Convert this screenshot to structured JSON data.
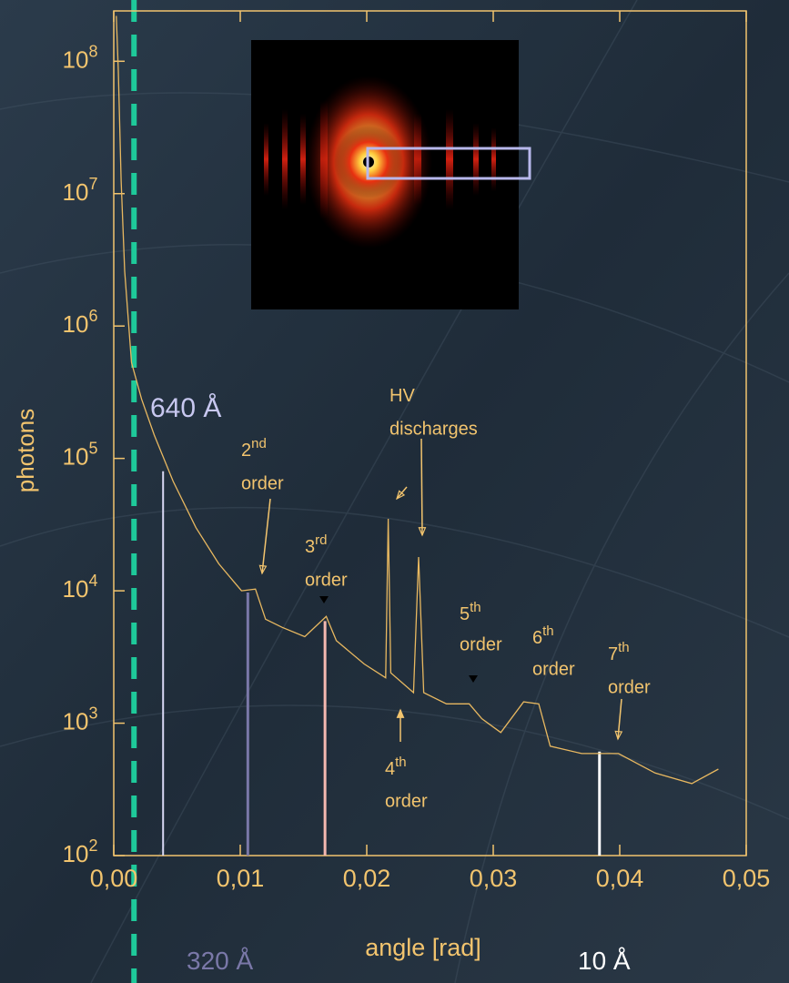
{
  "chart_data": {
    "type": "line",
    "xlabel": "angle [rad]",
    "ylabel": "photons",
    "log_y": true,
    "xlim": [
      0,
      0.05
    ],
    "ylim": [
      100,
      240000000
    ],
    "xticks": [
      {
        "value": 0,
        "label": "0,00"
      },
      {
        "value": 0.01,
        "label": "0,01"
      },
      {
        "value": 0.02,
        "label": "0,02"
      },
      {
        "value": 0.03,
        "label": "0,03"
      },
      {
        "value": 0.04,
        "label": "0,04"
      },
      {
        "value": 0.05,
        "label": "0,05"
      }
    ],
    "yticks": [
      {
        "value": 100,
        "label": "10",
        "sup": "2"
      },
      {
        "value": 1000,
        "label": "10",
        "sup": "3"
      },
      {
        "value": 10000,
        "label": "10",
        "sup": "4"
      },
      {
        "value": 100000,
        "label": "10",
        "sup": "5"
      },
      {
        "value": 1000000,
        "label": "10",
        "sup": "6"
      },
      {
        "value": 10000000,
        "label": "10",
        "sup": "7"
      },
      {
        "value": 100000000,
        "label": "10",
        "sup": "8"
      }
    ],
    "axis_color": "#f2c46e",
    "series": [
      {
        "color": "#e8b860",
        "x": [
          0.0002,
          0.00036,
          0.00058,
          0.00086,
          0.0014,
          0.0022,
          0.0032,
          0.0047,
          0.0065,
          0.0083,
          0.0101,
          0.0112,
          0.012,
          0.0133,
          0.0151,
          0.0168,
          0.0176,
          0.0198,
          0.0215,
          0.0217,
          0.0219,
          0.0237,
          0.0241,
          0.0245,
          0.0263,
          0.0281,
          0.0291,
          0.0306,
          0.0324,
          0.0336,
          0.0345,
          0.037,
          0.0399,
          0.0428,
          0.0457,
          0.0478
        ],
        "values": [
          220000000,
          85000000,
          12600000,
          2600000,
          530000,
          280000,
          150000,
          67000,
          30000,
          16000,
          10000,
          10300,
          6100,
          5300,
          4500,
          6400,
          4200,
          2800,
          2200,
          35000,
          2400,
          1700,
          18000,
          1700,
          1400,
          1400,
          1080,
          850,
          1450,
          1400,
          670,
          590,
          590,
          420,
          350,
          450
        ]
      }
    ],
    "markers": [
      {
        "x": 0.0039,
        "value": 80000,
        "color": "#d8d8f4"
      },
      {
        "x": 0.0106,
        "value": 9700,
        "color": "#7a78a8"
      },
      {
        "x": 0.0167,
        "value": 5900,
        "color": "#f4b8b0"
      },
      {
        "x": 0.0384,
        "value": 610,
        "color": "#ffffff"
      }
    ],
    "reference_line": {
      "x": 0.0016,
      "color": "#1ec99a"
    },
    "annotations": [
      {
        "text": "640 Å"
      },
      {
        "text": "2",
        "sup": "nd",
        "text2": "order"
      },
      {
        "text": "3",
        "sup": "rd",
        "text2": "order"
      },
      {
        "text": "HV",
        "text2": "discharges"
      },
      {
        "text": "4",
        "sup": "th",
        "text2": "order"
      },
      {
        "text": "5",
        "sup": "th",
        "text2": "order"
      },
      {
        "text": "6",
        "sup": "th",
        "text2": "order"
      },
      {
        "text": "7",
        "sup": "th",
        "text2": "order"
      },
      {
        "text": "320 Å"
      },
      {
        "text": "10 Å"
      }
    ]
  }
}
